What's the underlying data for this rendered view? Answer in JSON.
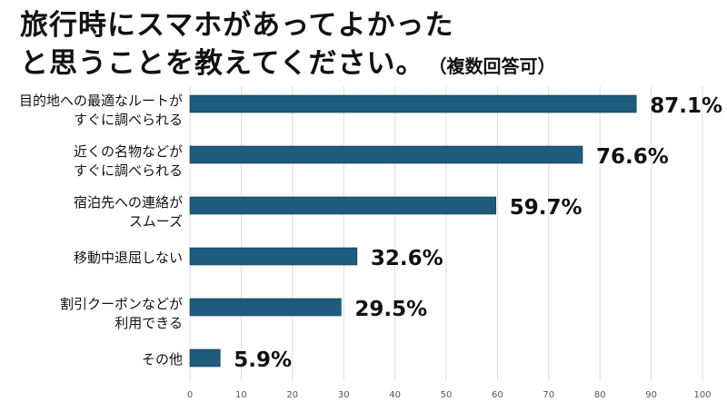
{
  "chart_data": {
    "type": "bar",
    "orientation": "horizontal",
    "title_line1": "旅行時にスマホがあってよかった",
    "title_line2": "と思うことを教えてください。",
    "subtitle": "（複数回答可）",
    "categories": [
      [
        "目的地への最適なルートが",
        "すぐに調べられる"
      ],
      [
        "近くの名物などが",
        "すぐに調べられる"
      ],
      [
        "宿泊先への連絡が",
        "スムーズ"
      ],
      [
        "移動中退屈しない"
      ],
      [
        "割引クーポンなどが",
        "利用できる"
      ],
      [
        "その他"
      ]
    ],
    "values": [
      87.1,
      76.6,
      59.7,
      32.6,
      29.5,
      5.9
    ],
    "value_suffix": "%",
    "xlim": [
      0,
      100
    ],
    "xticks": [
      0,
      10,
      20,
      30,
      40,
      50,
      60,
      70,
      80,
      90,
      100
    ],
    "grid": true,
    "bar_color": "#1e5b7c",
    "xlabel": "",
    "ylabel": ""
  }
}
